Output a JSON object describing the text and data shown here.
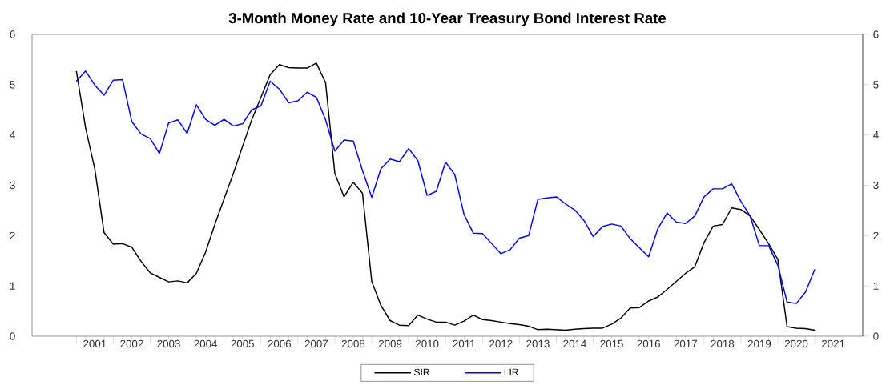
{
  "chart_data": {
    "type": "line",
    "title": "3-Month Money Rate and 10-Year Treasury Bond Interest Rate",
    "x": [
      2001,
      2001.25,
      2001.5,
      2001.75,
      2002,
      2002.25,
      2002.5,
      2002.75,
      2003,
      2003.25,
      2003.5,
      2003.75,
      2004,
      2004.25,
      2004.5,
      2004.75,
      2005,
      2005.25,
      2005.5,
      2005.75,
      2006,
      2006.25,
      2006.5,
      2006.75,
      2007,
      2007.25,
      2007.5,
      2007.75,
      2008,
      2008.25,
      2008.5,
      2008.75,
      2009,
      2009.25,
      2009.5,
      2009.75,
      2010,
      2010.25,
      2010.5,
      2010.75,
      2011,
      2011.25,
      2011.5,
      2011.75,
      2012,
      2012.25,
      2012.5,
      2012.75,
      2013,
      2013.25,
      2013.5,
      2013.75,
      2014,
      2014.25,
      2014.5,
      2014.75,
      2015,
      2015.25,
      2015.5,
      2015.75,
      2016,
      2016.25,
      2016.5,
      2016.75,
      2017,
      2017.25,
      2017.5,
      2017.75,
      2018,
      2018.25,
      2018.5,
      2018.75,
      2019,
      2019.25,
      2019.5,
      2019.75,
      2020,
      2020.25,
      2020.5,
      2020.75,
      2021
    ],
    "series": [
      {
        "name": "SIR",
        "color": "#000000",
        "values": [
          5.27,
          4.14,
          3.32,
          2.06,
          1.83,
          1.84,
          1.77,
          1.49,
          1.26,
          1.17,
          1.08,
          1.1,
          1.06,
          1.25,
          1.67,
          2.22,
          2.73,
          3.23,
          3.77,
          4.3,
          4.75,
          5.2,
          5.4,
          5.34,
          5.33,
          5.33,
          5.43,
          5.04,
          3.24,
          2.77,
          3.06,
          2.84,
          1.09,
          0.61,
          0.31,
          0.22,
          0.21,
          0.42,
          0.34,
          0.28,
          0.28,
          0.22,
          0.3,
          0.42,
          0.33,
          0.31,
          0.28,
          0.25,
          0.23,
          0.2,
          0.13,
          0.14,
          0.13,
          0.12,
          0.14,
          0.15,
          0.16,
          0.16,
          0.24,
          0.36,
          0.56,
          0.57,
          0.7,
          0.78,
          0.93,
          1.09,
          1.25,
          1.38,
          1.86,
          2.19,
          2.22,
          2.55,
          2.52,
          2.39,
          2.12,
          1.84,
          1.53,
          0.19,
          0.16,
          0.15,
          0.12
        ]
      },
      {
        "name": "LIR",
        "color": "#0000ff",
        "values": [
          5.07,
          5.27,
          4.99,
          4.79,
          5.09,
          5.1,
          4.27,
          4.02,
          3.93,
          3.63,
          4.24,
          4.3,
          4.03,
          4.6,
          4.31,
          4.19,
          4.31,
          4.18,
          4.22,
          4.5,
          4.58,
          5.07,
          4.91,
          4.64,
          4.68,
          4.85,
          4.75,
          4.3,
          3.68,
          3.9,
          3.88,
          3.29,
          2.76,
          3.33,
          3.52,
          3.47,
          3.73,
          3.49,
          2.8,
          2.88,
          3.46,
          3.21,
          2.42,
          2.05,
          2.04,
          1.84,
          1.64,
          1.72,
          1.95,
          2.0,
          2.72,
          2.75,
          2.77,
          2.63,
          2.51,
          2.3,
          1.98,
          2.18,
          2.23,
          2.19,
          1.94,
          1.76,
          1.58,
          2.14,
          2.45,
          2.27,
          2.24,
          2.39,
          2.77,
          2.93,
          2.93,
          3.03,
          2.68,
          2.39,
          1.8,
          1.8,
          1.41,
          0.68,
          0.65,
          0.88,
          1.33
        ]
      }
    ],
    "xlim": [
      1999.8,
      2022.3
    ],
    "xticks": [
      {
        "value": 2001,
        "label": null
      },
      {
        "value": 2002,
        "label": null
      },
      {
        "value": 2003,
        "label": null
      },
      {
        "value": 2004,
        "label": null
      },
      {
        "value": 2005,
        "label": null
      },
      {
        "value": 2006,
        "label": null
      },
      {
        "value": 2007,
        "label": null
      },
      {
        "value": 2008,
        "label": null
      },
      {
        "value": 2009,
        "label": null
      },
      {
        "value": 2010,
        "label": null
      },
      {
        "value": 2011,
        "label": null
      },
      {
        "value": 2012,
        "label": null
      },
      {
        "value": 2013,
        "label": null
      },
      {
        "value": 2014,
        "label": null
      },
      {
        "value": 2015,
        "label": null
      },
      {
        "value": 2016,
        "label": null
      },
      {
        "value": 2017,
        "label": null
      },
      {
        "value": 2018,
        "label": null
      },
      {
        "value": 2019,
        "label": null
      },
      {
        "value": 2020,
        "label": null
      },
      {
        "value": 2021,
        "label": null
      },
      {
        "value": 2001.5,
        "label": "2001"
      },
      {
        "value": 2002.5,
        "label": "2002"
      },
      {
        "value": 2003.5,
        "label": "2003"
      },
      {
        "value": 2004.5,
        "label": "2004"
      },
      {
        "value": 2005.5,
        "label": "2005"
      },
      {
        "value": 2006.5,
        "label": "2006"
      },
      {
        "value": 2007.5,
        "label": "2007"
      },
      {
        "value": 2008.5,
        "label": "2008"
      },
      {
        "value": 2009.5,
        "label": "2009"
      },
      {
        "value": 2010.5,
        "label": "2010"
      },
      {
        "value": 2011.5,
        "label": "2011"
      },
      {
        "value": 2012.5,
        "label": "2012"
      },
      {
        "value": 2013.5,
        "label": "2013"
      },
      {
        "value": 2014.5,
        "label": "2014"
      },
      {
        "value": 2015.5,
        "label": "2015"
      },
      {
        "value": 2016.5,
        "label": "2016"
      },
      {
        "value": 2017.5,
        "label": "2017"
      },
      {
        "value": 2018.5,
        "label": "2018"
      },
      {
        "value": 2019.5,
        "label": "2019"
      },
      {
        "value": 2020.5,
        "label": "2020"
      },
      {
        "value": 2021.5,
        "label": "2021"
      }
    ],
    "ylim": [
      0,
      6
    ],
    "yticks": [
      0,
      1,
      2,
      3,
      4,
      5,
      6
    ],
    "y2lim": [
      0,
      6
    ],
    "y2ticks": [
      0,
      1,
      2,
      3,
      4,
      5,
      6
    ],
    "legend": "bottom"
  }
}
